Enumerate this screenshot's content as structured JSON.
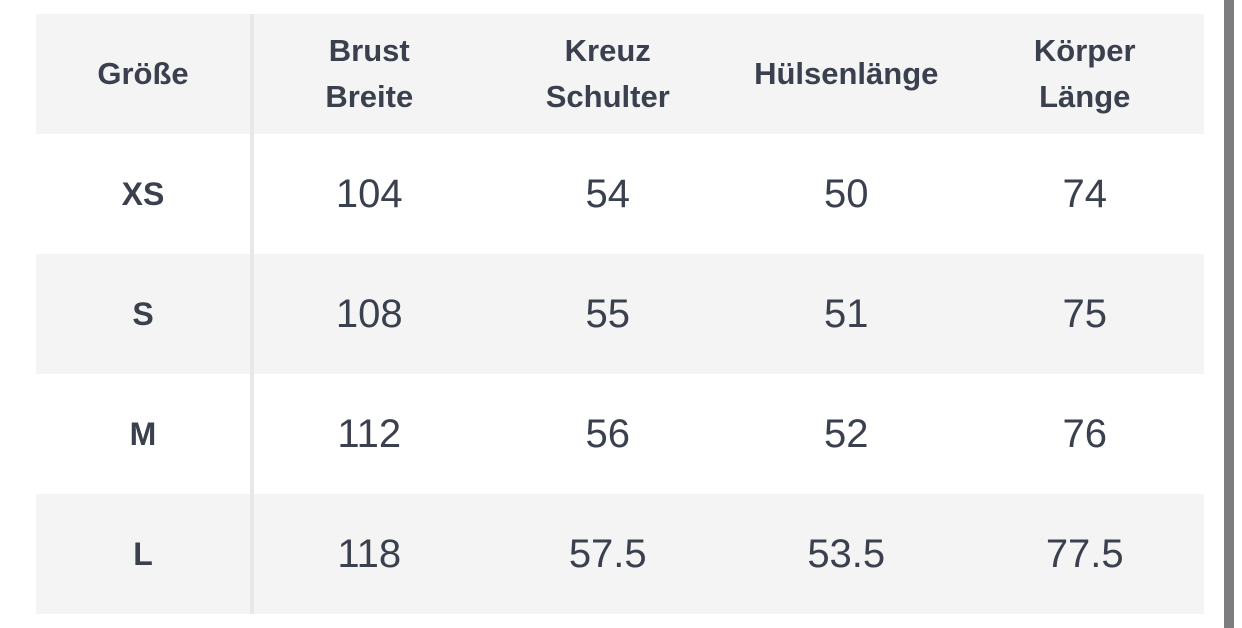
{
  "colors": {
    "band": "#f4f4f5",
    "divider": "#e8e8ea",
    "text": "#3a404d",
    "scrollbar": "#7d7d80",
    "background": "#ffffff"
  },
  "table": {
    "header": {
      "size_label": "Größe",
      "columns": [
        {
          "lines": [
            "Brust",
            "Breite"
          ]
        },
        {
          "lines": [
            "Kreuz",
            "Schulter"
          ]
        },
        {
          "lines": [
            "Hülsenlänge"
          ]
        },
        {
          "lines": [
            "Körper",
            "Länge"
          ]
        }
      ]
    },
    "rows": [
      {
        "size": "XS",
        "values": [
          "104",
          "54",
          "50",
          "74"
        ]
      },
      {
        "size": "S",
        "values": [
          "108",
          "55",
          "51",
          "75"
        ]
      },
      {
        "size": "M",
        "values": [
          "112",
          "56",
          "52",
          "76"
        ]
      },
      {
        "size": "L",
        "values": [
          "118",
          "57.5",
          "53.5",
          "77.5"
        ]
      }
    ]
  }
}
